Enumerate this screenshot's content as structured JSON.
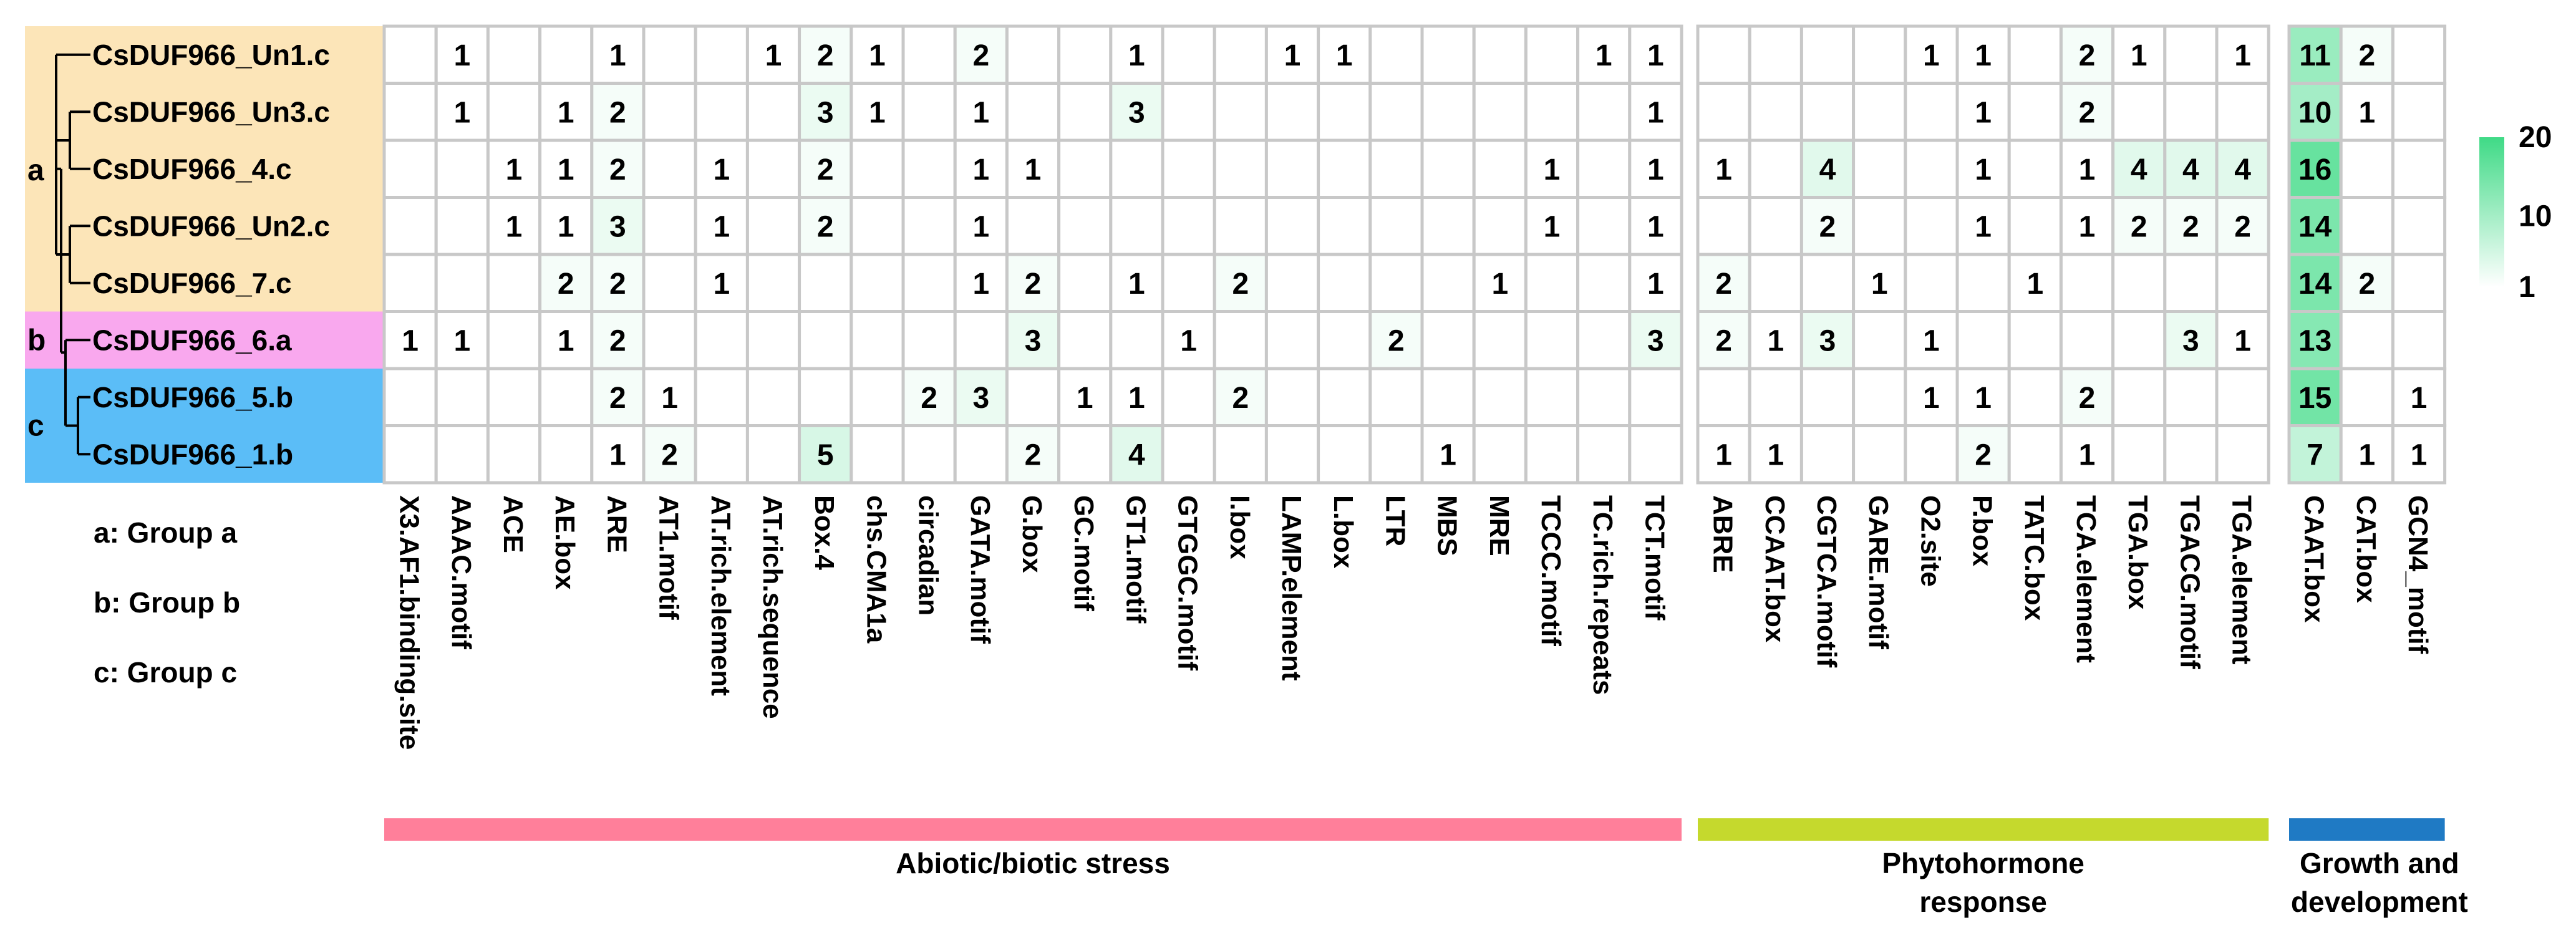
{
  "chart_data": {
    "type": "heatmap",
    "genes": [
      "CsDUF966_Un1.c",
      "CsDUF966_Un3.c",
      "CsDUF966_4.c",
      "CsDUF966_Un2.c",
      "CsDUF966_7.c",
      "CsDUF966_6.a",
      "CsDUF966_5.b",
      "CsDUF966_1.b"
    ],
    "gene_groups": [
      "a",
      "a",
      "a",
      "a",
      "a",
      "b",
      "c",
      "c"
    ],
    "group_labels": [
      "a",
      "b",
      "c"
    ],
    "group_colors": {
      "a": "#FCE5B8",
      "b": "#F9A8EE",
      "c": "#5BBDF7"
    },
    "legend_entries": [
      "a: Group a",
      "b: Group b",
      "c: Group c"
    ],
    "columns": [
      "X3.AF1.binding.site",
      "AAAC.motif",
      "ACE",
      "AE.box",
      "ARE",
      "AT1.motif",
      "AT.rich.element",
      "AT.rich.sequence",
      "Box.4",
      "chs.CMA1a",
      "circadian",
      "GATA.motif",
      "G.box",
      "GC.motif",
      "GT1.motif",
      "GTGGC.motif",
      "I.box",
      "LAMP.element",
      "L.box",
      "LTR",
      "MBS",
      "MRE",
      "TCCC.motif",
      "TC.rich.repeats",
      "TCT.motif",
      "ABRE",
      "CCAAT.box",
      "CGTCA.motif",
      "GARE.motif",
      "O2.site",
      "P.box",
      "TATC.box",
      "TCA.element",
      "TGA.box",
      "TGACG.motif",
      "TGA.element",
      "CAAT.box",
      "CAT.box",
      "GCN4_motif"
    ],
    "column_blocks": [
      {
        "name": "Abiotic/biotic stress",
        "start": 0,
        "end": 24,
        "color": "#FF7F9A"
      },
      {
        "name": "Phytohormone response",
        "start": 25,
        "end": 35,
        "color": "#C5D92D"
      },
      {
        "name": "Growth and development",
        "start": 36,
        "end": 38,
        "color": "#1F7AC4"
      }
    ],
    "values": [
      [
        null,
        1,
        null,
        null,
        1,
        null,
        null,
        1,
        2,
        1,
        null,
        2,
        null,
        null,
        1,
        null,
        null,
        1,
        1,
        null,
        null,
        null,
        null,
        1,
        1,
        null,
        null,
        null,
        null,
        1,
        1,
        null,
        2,
        1,
        null,
        1,
        11,
        2,
        null
      ],
      [
        null,
        1,
        null,
        1,
        2,
        null,
        null,
        null,
        3,
        1,
        null,
        1,
        null,
        null,
        3,
        null,
        null,
        null,
        null,
        null,
        null,
        null,
        null,
        null,
        1,
        null,
        null,
        null,
        null,
        null,
        1,
        null,
        2,
        null,
        null,
        null,
        10,
        1,
        null
      ],
      [
        null,
        null,
        1,
        1,
        2,
        null,
        1,
        null,
        2,
        null,
        null,
        1,
        1,
        null,
        null,
        null,
        null,
        null,
        null,
        null,
        null,
        null,
        1,
        null,
        1,
        1,
        null,
        4,
        null,
        null,
        1,
        null,
        1,
        4,
        4,
        4,
        16,
        null,
        null
      ],
      [
        null,
        null,
        1,
        1,
        3,
        null,
        1,
        null,
        2,
        null,
        null,
        1,
        null,
        null,
        null,
        null,
        null,
        null,
        null,
        null,
        null,
        null,
        1,
        null,
        1,
        null,
        null,
        2,
        null,
        null,
        1,
        null,
        1,
        2,
        2,
        2,
        14,
        null,
        null
      ],
      [
        null,
        null,
        null,
        2,
        2,
        null,
        1,
        null,
        null,
        null,
        null,
        1,
        2,
        null,
        1,
        null,
        2,
        null,
        null,
        null,
        null,
        1,
        null,
        null,
        1,
        2,
        null,
        null,
        1,
        null,
        null,
        1,
        null,
        null,
        null,
        null,
        14,
        2,
        null
      ],
      [
        1,
        1,
        null,
        1,
        2,
        null,
        null,
        null,
        null,
        null,
        null,
        null,
        3,
        null,
        null,
        1,
        null,
        null,
        null,
        2,
        null,
        null,
        null,
        null,
        3,
        2,
        1,
        3,
        null,
        1,
        null,
        null,
        null,
        null,
        3,
        1,
        13,
        null,
        null
      ],
      [
        null,
        null,
        null,
        null,
        2,
        1,
        null,
        null,
        null,
        null,
        2,
        3,
        null,
        1,
        1,
        null,
        2,
        null,
        null,
        null,
        null,
        null,
        null,
        null,
        null,
        null,
        null,
        null,
        null,
        1,
        1,
        null,
        2,
        null,
        null,
        null,
        15,
        null,
        1
      ],
      [
        null,
        null,
        null,
        null,
        1,
        2,
        null,
        null,
        5,
        null,
        null,
        null,
        2,
        null,
        4,
        null,
        null,
        null,
        null,
        null,
        1,
        null,
        null,
        null,
        null,
        1,
        1,
        null,
        null,
        null,
        2,
        null,
        1,
        null,
        null,
        null,
        7,
        1,
        1
      ]
    ],
    "colorbar": {
      "min": 1,
      "max": 20,
      "ticks": [
        20,
        10,
        1
      ],
      "low_color": "#FFFFFF",
      "high_color": "#3FDA86"
    }
  }
}
